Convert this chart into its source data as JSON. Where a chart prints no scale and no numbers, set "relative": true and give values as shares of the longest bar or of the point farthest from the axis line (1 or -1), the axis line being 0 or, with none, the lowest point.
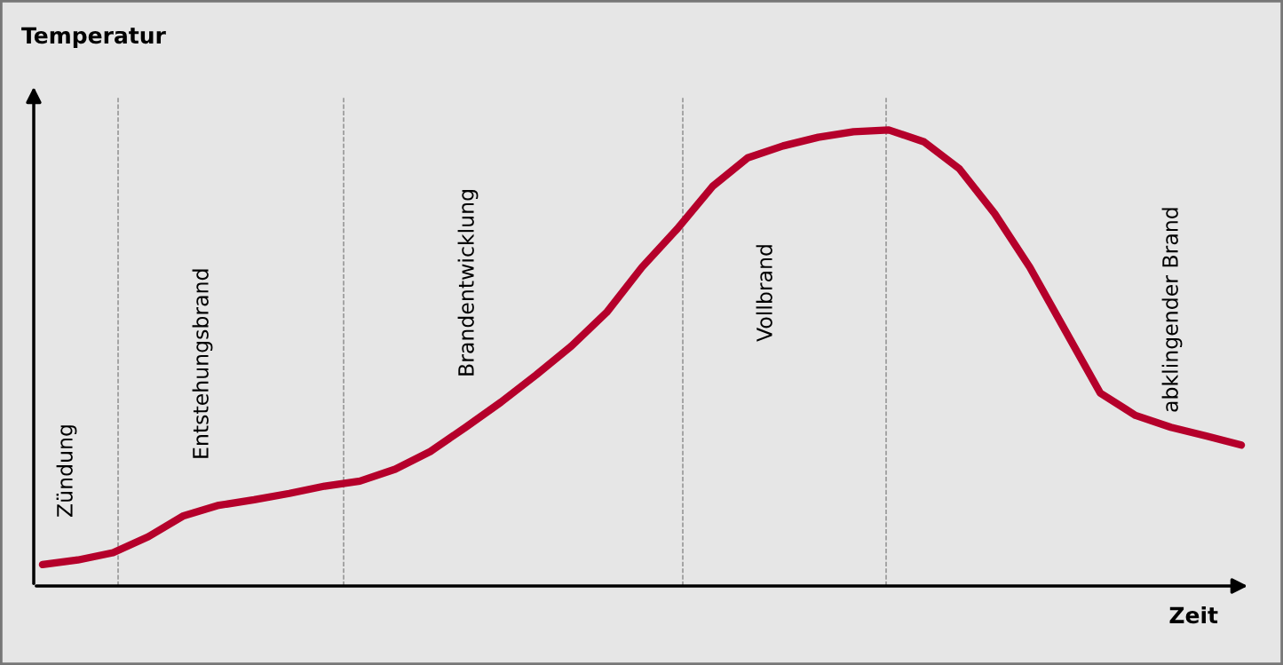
{
  "chart_data": {
    "type": "line",
    "xlabel": "Zeit",
    "ylabel": "Temperatur",
    "relative": true,
    "marker": "none",
    "line_style": "solid",
    "categories": [
      null,
      null,
      null,
      null,
      null,
      null,
      null,
      null,
      null,
      null,
      null,
      null,
      null,
      null,
      null,
      null,
      null,
      null,
      null,
      null,
      null,
      null,
      null,
      null,
      null,
      null,
      null,
      null,
      null,
      null,
      null,
      null,
      null,
      null,
      null
    ],
    "series": [
      {
        "color": "#b5002b",
        "values": [
          0.047,
          0.057,
          0.073,
          0.108,
          0.154,
          0.177,
          0.189,
          0.203,
          0.219,
          0.23,
          0.256,
          0.295,
          0.348,
          0.403,
          0.463,
          0.526,
          0.6,
          0.699,
          0.783,
          0.876,
          0.939,
          0.965,
          0.984,
          0.996,
          1,
          0.974,
          0.915,
          0.817,
          0.699,
          0.561,
          0.423,
          0.374,
          0.348,
          0.329,
          0.309
        ]
      }
    ],
    "annotations": [
      "Zündung",
      "Entstehungsbrand",
      "Brandentwicklung",
      "Vollbrand",
      "abklingender Brand"
    ]
  }
}
